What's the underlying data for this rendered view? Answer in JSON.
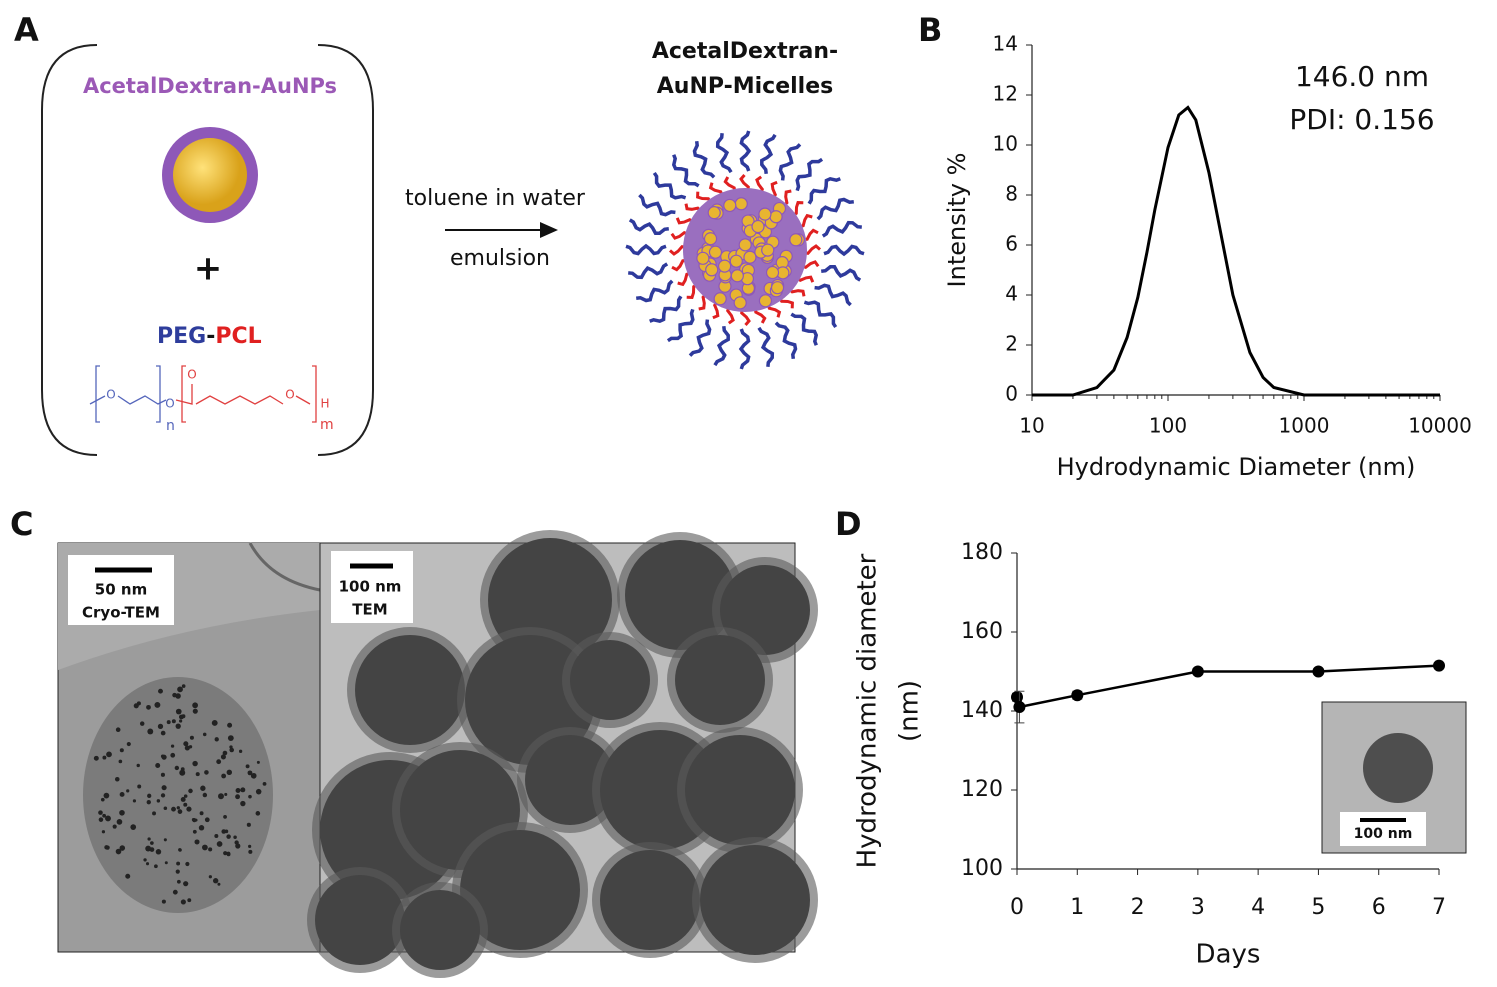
{
  "panel_labels": [
    "A",
    "B",
    "C",
    "D"
  ],
  "diagram": {
    "nanoparticle_label": "AcetalDextran-AuNPs",
    "plus": "+",
    "polymer_label_1": "PEG",
    "polymer_label_sep": "-",
    "polymer_label_2": "PCL",
    "atom_labels": [
      "O",
      "O",
      "O",
      "O",
      "H"
    ],
    "subscript_n": "n",
    "subscript_m": "m",
    "arrow_top": "toluene in water",
    "arrow_bottom": "emulsion",
    "product_label_1": "AcetalDextran-",
    "product_label_2": "AuNP-Micelles"
  },
  "micrographs": [
    {
      "scale": "50 nm",
      "method": "Cryo-TEM"
    },
    {
      "scale": "100 nm",
      "method": "TEM"
    }
  ],
  "inset": {
    "scale": "100 nm"
  },
  "chart_data": [
    {
      "type": "line",
      "log_x": true,
      "color": "#000000",
      "x": [
        10,
        20,
        30,
        40,
        50,
        60,
        70,
        80,
        100,
        120,
        140,
        160,
        200,
        250,
        300,
        400,
        500,
        600,
        1000,
        10000
      ],
      "values": [
        0,
        0,
        0.3,
        1.0,
        2.3,
        3.9,
        5.7,
        7.4,
        9.9,
        11.2,
        11.5,
        11.0,
        8.9,
        6.2,
        4.0,
        1.7,
        0.7,
        0.3,
        0,
        0
      ],
      "xlim": [
        10,
        10000
      ],
      "xticks": [
        10,
        100,
        1000,
        10000
      ],
      "ylim": [
        0,
        14
      ],
      "yticks": [
        0,
        2,
        4,
        6,
        8,
        10,
        12,
        14
      ],
      "xlabel": "Hydrodynamic Diameter (nm)",
      "ylabel": "Intensity %",
      "annotations": [
        "146.0 nm",
        "PDI: 0.156"
      ]
    },
    {
      "type": "line",
      "color": "#000000",
      "x": [
        0,
        0.04,
        1,
        3,
        5,
        7
      ],
      "values": [
        143.5,
        141,
        144,
        150,
        150,
        151.5
      ],
      "errors": [
        1,
        4,
        1,
        0.7,
        0.5,
        0.5
      ],
      "xlim": [
        0,
        7
      ],
      "xticks": [
        0,
        1,
        2,
        3,
        4,
        5,
        6,
        7
      ],
      "ylim": [
        100,
        180
      ],
      "yticks": [
        100,
        120,
        140,
        160,
        180
      ],
      "xlabel": "Days",
      "ylabel": [
        "Hydrodynamic diameter",
        "(nm)"
      ]
    }
  ]
}
